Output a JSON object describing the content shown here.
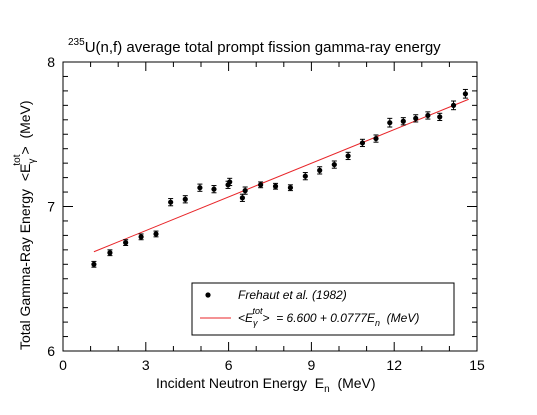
{
  "chart_data": {
    "type": "scatter",
    "title": {
      "superscript": "235",
      "text": "U(n,f) average total prompt fission gamma-ray energy"
    },
    "xlabel": {
      "text": "Incident Neutron Energy  E",
      "subscript": "n",
      "unit": "  (MeV)"
    },
    "ylabel": {
      "text": "Total Gamma-Ray Energy  <E",
      "subscript": "γ",
      "superscript": "tot",
      "unit": ">  (MeV)"
    },
    "xlim": [
      0,
      15
    ],
    "ylim": [
      6,
      8
    ],
    "xticks": [
      0,
      3,
      6,
      9,
      12,
      15
    ],
    "yticks": [
      6,
      7,
      8
    ],
    "grid": false,
    "legend_position": "bottom-right",
    "series": [
      {
        "name": "Frehaut et al. (1982)",
        "kind": "points-with-errorbars",
        "color": "#000000",
        "points": [
          {
            "x": 1.12,
            "y": 6.6,
            "err": 0.02
          },
          {
            "x": 1.7,
            "y": 6.68,
            "err": 0.02
          },
          {
            "x": 2.27,
            "y": 6.75,
            "err": 0.02
          },
          {
            "x": 2.83,
            "y": 6.79,
            "err": 0.02
          },
          {
            "x": 3.37,
            "y": 6.81,
            "err": 0.02
          },
          {
            "x": 3.9,
            "y": 7.03,
            "err": 0.025
          },
          {
            "x": 4.43,
            "y": 7.05,
            "err": 0.025
          },
          {
            "x": 4.96,
            "y": 7.13,
            "err": 0.025
          },
          {
            "x": 5.47,
            "y": 7.12,
            "err": 0.025
          },
          {
            "x": 5.98,
            "y": 7.15,
            "err": 0.025
          },
          {
            "x": 6.04,
            "y": 7.17,
            "err": 0.025
          },
          {
            "x": 6.5,
            "y": 7.06,
            "err": 0.025
          },
          {
            "x": 6.6,
            "y": 7.11,
            "err": 0.025
          },
          {
            "x": 7.16,
            "y": 7.15,
            "err": 0.02
          },
          {
            "x": 7.7,
            "y": 7.14,
            "err": 0.02
          },
          {
            "x": 8.24,
            "y": 7.13,
            "err": 0.02
          },
          {
            "x": 8.78,
            "y": 7.21,
            "err": 0.025
          },
          {
            "x": 9.3,
            "y": 7.25,
            "err": 0.025
          },
          {
            "x": 9.83,
            "y": 7.29,
            "err": 0.025
          },
          {
            "x": 10.33,
            "y": 7.35,
            "err": 0.025
          },
          {
            "x": 10.85,
            "y": 7.44,
            "err": 0.025
          },
          {
            "x": 11.34,
            "y": 7.47,
            "err": 0.025
          },
          {
            "x": 11.84,
            "y": 7.58,
            "err": 0.03
          },
          {
            "x": 12.33,
            "y": 7.59,
            "err": 0.025
          },
          {
            "x": 12.78,
            "y": 7.61,
            "err": 0.025
          },
          {
            "x": 13.22,
            "y": 7.63,
            "err": 0.025
          },
          {
            "x": 13.65,
            "y": 7.62,
            "err": 0.025
          },
          {
            "x": 14.15,
            "y": 7.7,
            "err": 0.03
          },
          {
            "x": 14.58,
            "y": 7.78,
            "err": 0.03
          }
        ]
      },
      {
        "name_parts": {
          "open": "<E",
          "sub": "γ",
          "sup": "tot",
          "close": ">  = 6.600 + 0.0777E",
          "sub2": "n",
          "unit": "  (MeV)"
        },
        "kind": "line",
        "color": "#e8262a",
        "intercept": 6.6,
        "slope": 0.0777,
        "x_range": [
          1.12,
          14.7
        ]
      }
    ]
  }
}
